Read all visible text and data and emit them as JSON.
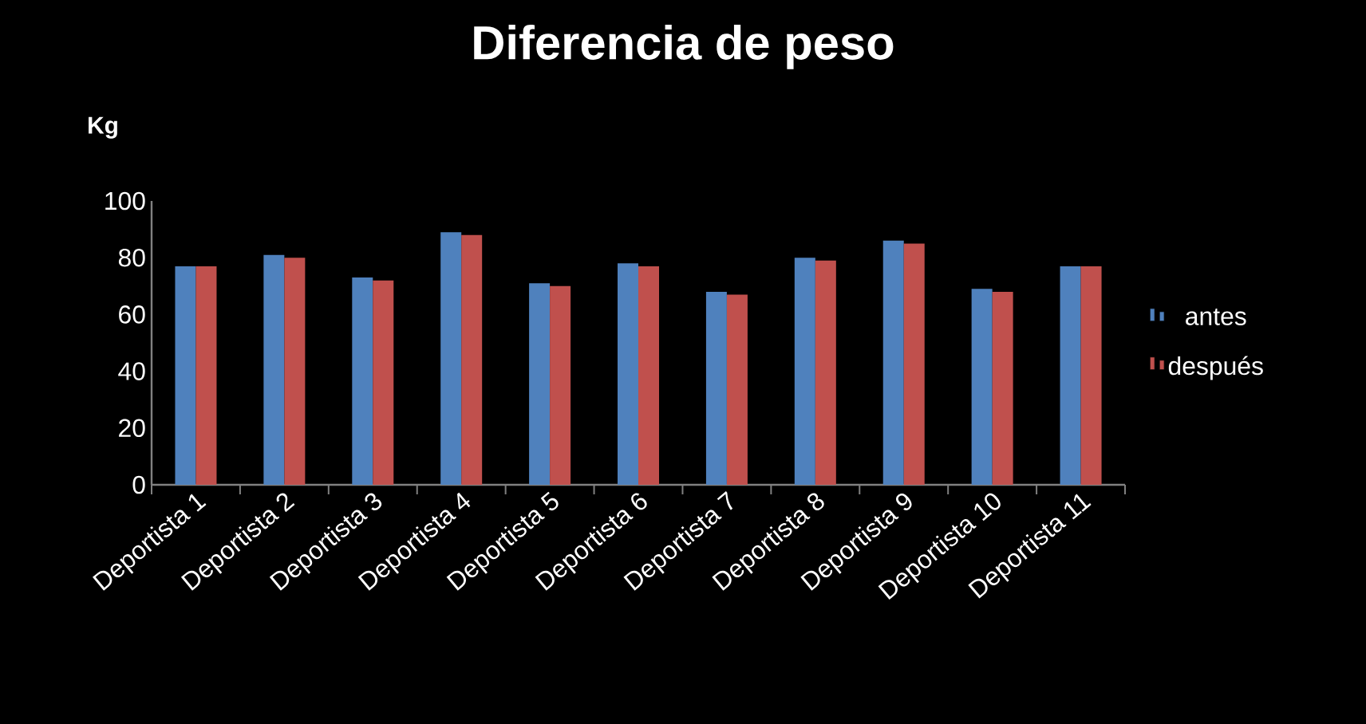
{
  "chart_data": {
    "type": "bar",
    "title": "Diferencia de peso",
    "ylabel": "Kg",
    "categories": [
      "Deportista 1",
      "Deportista 2",
      "Deportista 3",
      "Deportista 4",
      "Deportista 5",
      "Deportista 6",
      "Deportista 7",
      "Deportista 8",
      "Deportista 9",
      "Deportista 10",
      "Deportista 11"
    ],
    "series": [
      {
        "name": "antes",
        "color": "#4f81bd",
        "values": [
          77,
          81,
          73,
          89,
          71,
          78,
          68,
          80,
          86,
          69,
          77
        ]
      },
      {
        "name": "después",
        "color": "#c0504d",
        "values": [
          77,
          80,
          72,
          88,
          70,
          77,
          67,
          79,
          85,
          68,
          77
        ]
      }
    ],
    "ylim": [
      0,
      100
    ],
    "yticks": [
      0,
      20,
      40,
      60,
      80,
      100
    ],
    "grid": false,
    "legend": "right"
  }
}
